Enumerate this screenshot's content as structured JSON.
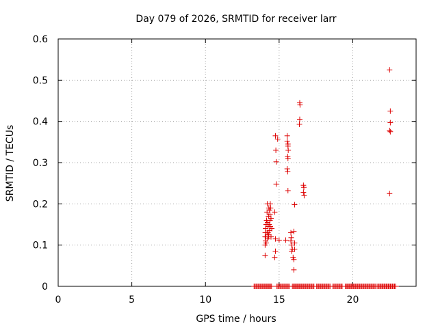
{
  "chart_data": {
    "type": "scatter",
    "title": "Day 079 of 2026, SRMTID for receiver larr",
    "xlabel": "GPS time / hours",
    "ylabel": "SRMTID / TECUs",
    "xlim": [
      0,
      24.3
    ],
    "ylim": [
      0,
      0.6
    ],
    "x_ticks": [
      0,
      5,
      10,
      15,
      20
    ],
    "x_tick_labels": [
      "0",
      "5",
      "10",
      "15",
      "20"
    ],
    "y_ticks": [
      0,
      0.1,
      0.2,
      0.3,
      0.4,
      0.5,
      0.6
    ],
    "y_tick_labels": [
      "0",
      "0.1",
      "0.2",
      "0.3",
      "0.4",
      "0.5",
      "0.6"
    ],
    "grid": true,
    "marker": "plus",
    "color": "#dd0000",
    "series": [
      {
        "name": "SRMTID",
        "points": [
          [
            14.05,
            0.075
          ],
          [
            14.05,
            0.1
          ],
          [
            14.08,
            0.11
          ],
          [
            14.05,
            0.12
          ],
          [
            14.06,
            0.13
          ],
          [
            14.08,
            0.14
          ],
          [
            14.1,
            0.12
          ],
          [
            14.12,
            0.105
          ],
          [
            14.15,
            0.16
          ],
          [
            14.18,
            0.18
          ],
          [
            14.2,
            0.2
          ],
          [
            14.22,
            0.155
          ],
          [
            14.25,
            0.145
          ],
          [
            14.25,
            0.13
          ],
          [
            14.28,
            0.17
          ],
          [
            14.3,
            0.19
          ],
          [
            14.3,
            0.125
          ],
          [
            14.32,
            0.15
          ],
          [
            14.35,
            0.185
          ],
          [
            14.38,
            0.175
          ],
          [
            14.4,
            0.2
          ],
          [
            14.42,
            0.19
          ],
          [
            14.45,
            0.165
          ],
          [
            14.45,
            0.12
          ],
          [
            14.5,
            0.14
          ],
          [
            14.22,
            0.115
          ],
          [
            14.35,
            0.135
          ],
          [
            14.12,
            0.15
          ],
          [
            14.18,
            0.13
          ],
          [
            14.28,
            0.12
          ],
          [
            14.38,
            0.16
          ],
          [
            14.4,
            0.145
          ],
          [
            14.7,
            0.18
          ],
          [
            14.75,
            0.085
          ],
          [
            14.7,
            0.07
          ],
          [
            14.75,
            0.115
          ],
          [
            14.8,
            0.248
          ],
          [
            14.8,
            0.302
          ],
          [
            14.78,
            0.33
          ],
          [
            14.75,
            0.365
          ],
          [
            14.9,
            0.357
          ],
          [
            15.0,
            0.112
          ],
          [
            15.45,
            0.112
          ],
          [
            15.55,
            0.365
          ],
          [
            15.55,
            0.352
          ],
          [
            15.6,
            0.345
          ],
          [
            15.6,
            0.34
          ],
          [
            15.62,
            0.33
          ],
          [
            15.58,
            0.315
          ],
          [
            15.6,
            0.31
          ],
          [
            15.55,
            0.285
          ],
          [
            15.58,
            0.278
          ],
          [
            15.6,
            0.232
          ],
          [
            15.8,
            0.11
          ],
          [
            15.82,
            0.118
          ],
          [
            15.8,
            0.13
          ],
          [
            15.85,
            0.1
          ],
          [
            15.9,
            0.09
          ],
          [
            15.85,
            0.085
          ],
          [
            15.95,
            0.07
          ],
          [
            16.0,
            0.065
          ],
          [
            16.05,
            0.09
          ],
          [
            16.0,
            0.133
          ],
          [
            16.0,
            0.04
          ],
          [
            16.05,
            0.105
          ],
          [
            16.05,
            0.198
          ],
          [
            16.4,
            0.445
          ],
          [
            16.42,
            0.44
          ],
          [
            16.4,
            0.405
          ],
          [
            16.38,
            0.393
          ],
          [
            16.65,
            0.245
          ],
          [
            16.68,
            0.24
          ],
          [
            16.65,
            0.228
          ],
          [
            16.7,
            0.22
          ],
          [
            22.5,
            0.525
          ],
          [
            22.55,
            0.425
          ],
          [
            22.55,
            0.397
          ],
          [
            22.5,
            0.378
          ],
          [
            22.55,
            0.375
          ],
          [
            22.5,
            0.225
          ]
        ],
        "zero_intervals": [
          [
            13.3,
            14.55
          ],
          [
            14.85,
            15.75
          ],
          [
            15.9,
            17.4
          ],
          [
            17.55,
            18.5
          ],
          [
            18.65,
            19.3
          ],
          [
            19.5,
            21.55
          ],
          [
            21.65,
            22.95
          ]
        ]
      }
    ]
  }
}
